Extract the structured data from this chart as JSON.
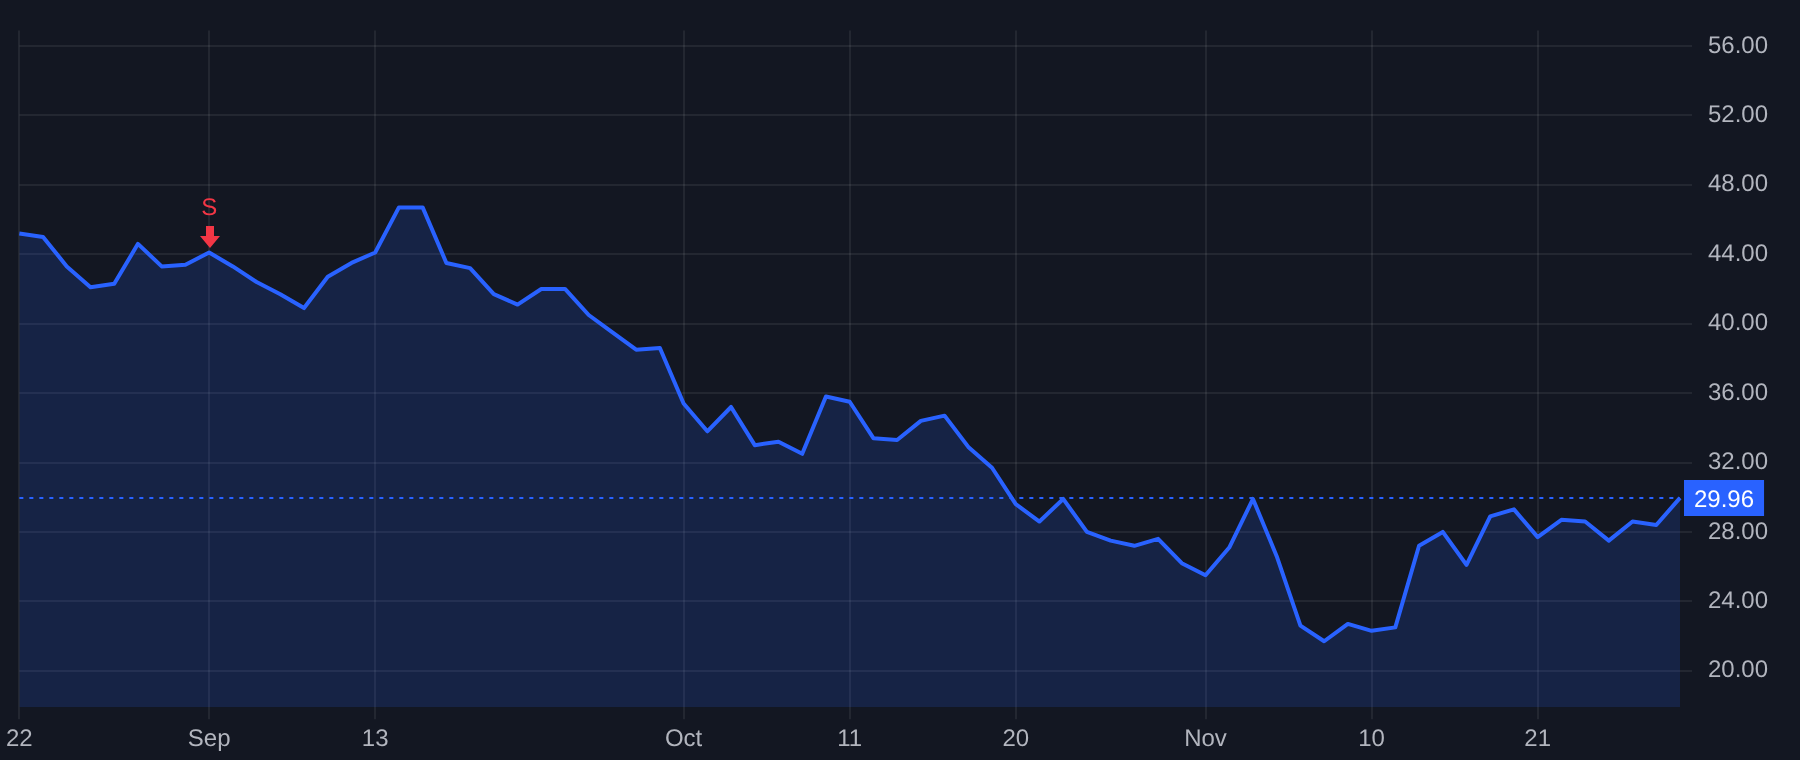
{
  "chart_data": {
    "type": "area",
    "categories": [
      "22",
      null,
      null,
      null,
      null,
      null,
      null,
      null,
      "Sep",
      null,
      null,
      null,
      null,
      null,
      null,
      "13",
      null,
      null,
      null,
      null,
      null,
      null,
      null,
      null,
      null,
      null,
      null,
      null,
      "Oct",
      null,
      null,
      null,
      null,
      null,
      null,
      "11",
      null,
      null,
      null,
      null,
      null,
      null,
      "20",
      null,
      null,
      null,
      null,
      null,
      null,
      null,
      "Nov",
      null,
      null,
      null,
      null,
      null,
      null,
      "10",
      null,
      null,
      null,
      null,
      null,
      null,
      "21",
      null,
      null,
      null,
      null,
      null,
      null
    ],
    "series": [
      {
        "color": "#2962ff",
        "values": [
          45.2,
          45.0,
          43.3,
          42.1,
          42.3,
          44.6,
          43.3,
          43.4,
          44.1,
          43.3,
          42.4,
          41.7,
          40.9,
          42.7,
          43.5,
          44.1,
          46.7,
          46.7,
          43.5,
          43.2,
          41.7,
          41.1,
          42.0,
          42.0,
          40.5,
          39.5,
          38.5,
          38.6,
          35.4,
          33.8,
          35.2,
          33.0,
          33.2,
          32.5,
          35.8,
          35.5,
          33.4,
          33.3,
          34.4,
          34.7,
          32.9,
          31.7,
          29.6,
          28.6,
          29.9,
          28.0,
          27.5,
          27.2,
          27.6,
          26.2,
          25.5,
          27.1,
          29.9,
          26.6,
          22.6,
          21.7,
          22.7,
          22.3,
          22.5,
          27.2,
          28.0,
          26.1,
          28.9,
          29.3,
          27.7,
          28.7,
          28.6,
          27.5,
          28.6,
          28.4,
          29.96
        ]
      }
    ],
    "ylim": [
      17.9,
      56.9
    ],
    "yticks": [
      {
        "value": 20,
        "label": "20.00"
      },
      {
        "value": 24,
        "label": "24.00"
      },
      {
        "value": 28,
        "label": "28.00"
      },
      {
        "value": 32,
        "label": "32.00"
      },
      {
        "value": 36,
        "label": "36.00"
      },
      {
        "value": 40,
        "label": "40.00"
      },
      {
        "value": 44,
        "label": "44.00"
      },
      {
        "value": 48,
        "label": "48.00"
      },
      {
        "value": 52,
        "label": "52.00"
      },
      {
        "value": 56,
        "label": "56.00"
      }
    ],
    "ref_lines": [
      {
        "axis": "y",
        "value": 29.96,
        "label": "29.96",
        "color": "#2962ff",
        "line_style": "dotted"
      }
    ],
    "annotations": [
      {
        "text": "S",
        "x": "Sep",
        "y": 44.1
      }
    ],
    "grid": true,
    "legend": false,
    "marker": "none",
    "line_style": "solid"
  }
}
